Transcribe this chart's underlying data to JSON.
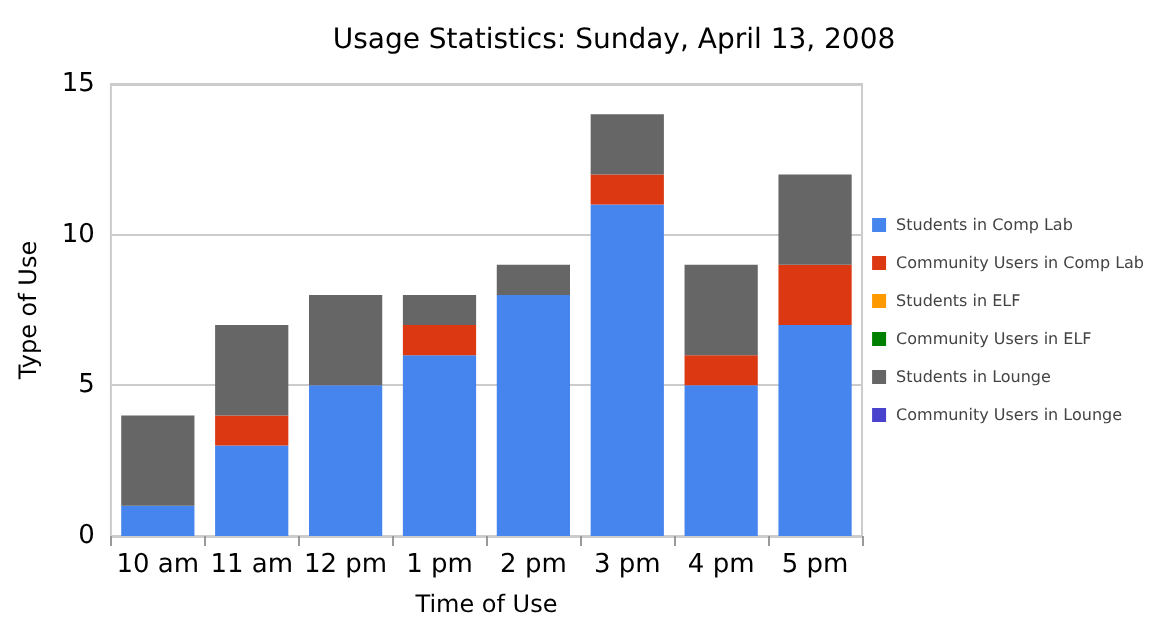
{
  "chart_data": {
    "type": "bar",
    "title": "Usage Statistics: Sunday, April 13, 2008",
    "xlabel": "Time of Use",
    "ylabel": "Type of Use",
    "categories": [
      "10 am",
      "11 am",
      "12 pm",
      "1 pm",
      "2 pm",
      "3 pm",
      "4 pm",
      "5 pm"
    ],
    "stacked": true,
    "ylim": [
      0,
      15
    ],
    "yticks": [
      0,
      5,
      10,
      15
    ],
    "grid": "y",
    "legend": "right",
    "series": [
      {
        "name": "Students in Comp Lab",
        "color": "#4684ee",
        "values": [
          1,
          3,
          5,
          6,
          8,
          11,
          5,
          7
        ]
      },
      {
        "name": "Community Users in Comp Lab",
        "color": "#dc3912",
        "values": [
          0,
          1,
          0,
          1,
          0,
          1,
          1,
          2
        ]
      },
      {
        "name": "Students in ELF",
        "color": "#ff9900",
        "values": [
          0,
          0,
          0,
          0,
          0,
          0,
          0,
          0
        ]
      },
      {
        "name": "Community Users in ELF",
        "color": "#008000",
        "values": [
          0,
          0,
          0,
          0,
          0,
          0,
          0,
          0
        ]
      },
      {
        "name": "Students in Lounge",
        "color": "#666666",
        "values": [
          3,
          3,
          3,
          1,
          1,
          2,
          3,
          3
        ]
      },
      {
        "name": "Community Users in Lounge",
        "color": "#4942cc",
        "values": [
          0,
          0,
          0,
          0,
          0,
          0,
          0,
          0
        ]
      }
    ]
  }
}
